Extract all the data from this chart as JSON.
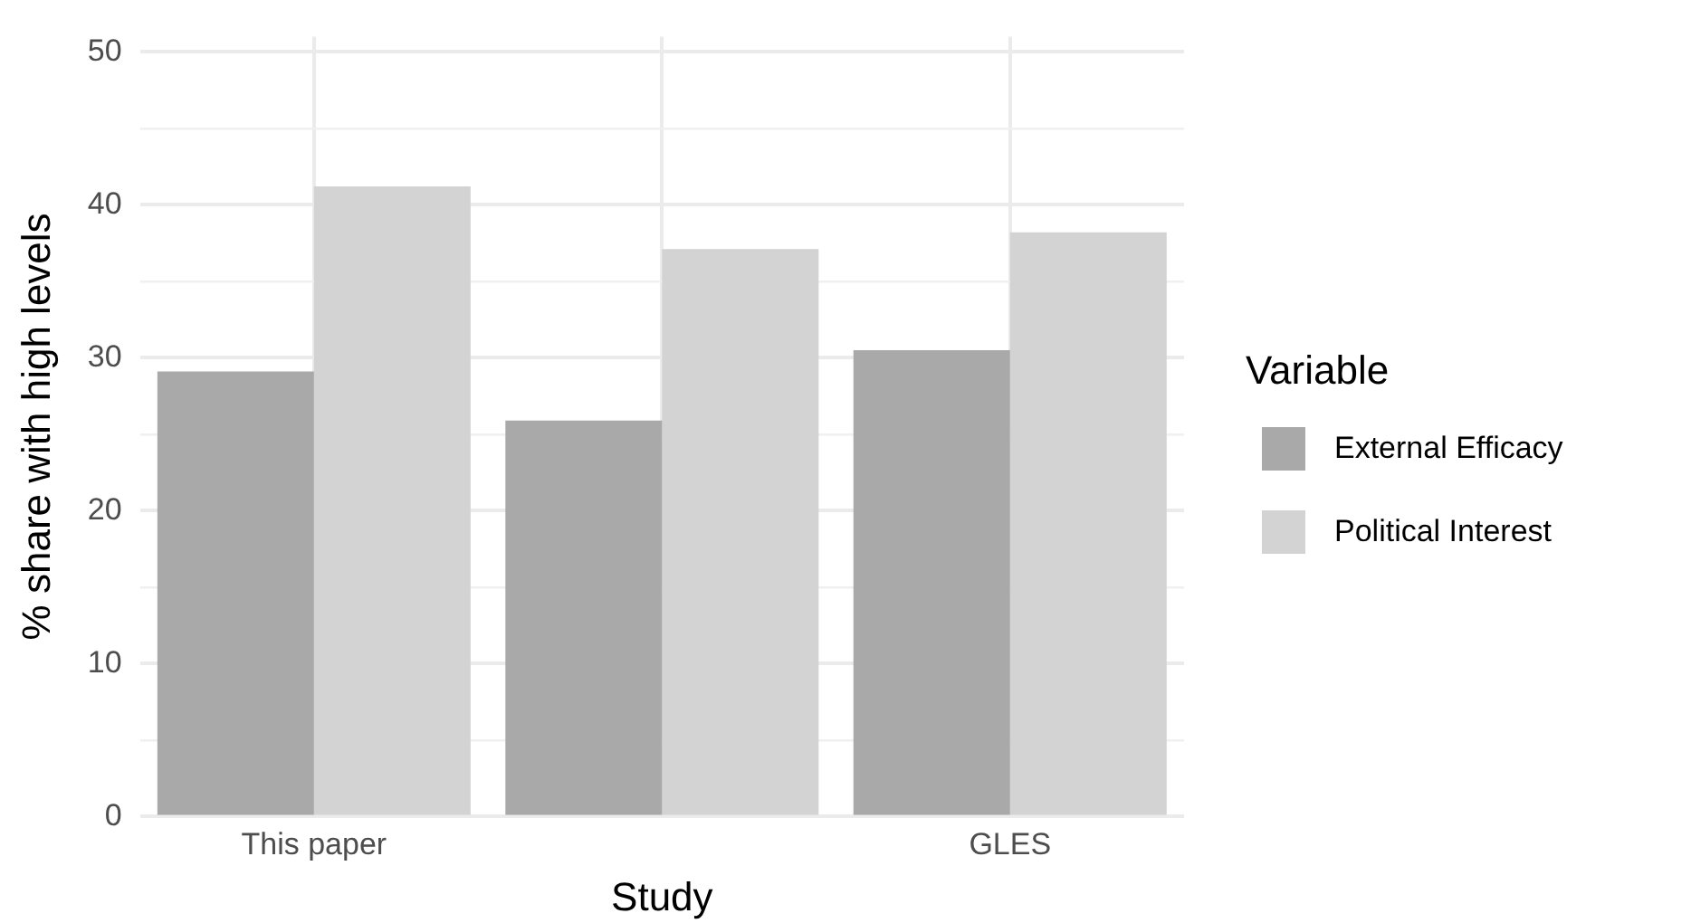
{
  "chart_data": {
    "type": "bar",
    "xlabel": "Study",
    "ylabel": "% share with high levels",
    "legend_title": "Variable",
    "categories": [
      "This paper",
      null,
      "GLES"
    ],
    "series": [
      {
        "name": "External Efficacy",
        "color": "#a9a9a9",
        "values": [
          29.1,
          25.9,
          30.5
        ]
      },
      {
        "name": "Political Interest",
        "color": "#d3d3d3",
        "values": [
          41.2,
          37.1,
          38.2
        ]
      }
    ],
    "ylim": [
      0,
      51
    ],
    "yticks": [
      0,
      {
        "value": 5,
        "label": null
      },
      10,
      {
        "value": 15,
        "label": null
      },
      20,
      {
        "value": 25,
        "label": null
      },
      30,
      {
        "value": 35,
        "label": null
      },
      40,
      {
        "value": 45,
        "label": null
      },
      50
    ],
    "grid": true,
    "legend": "right"
  }
}
